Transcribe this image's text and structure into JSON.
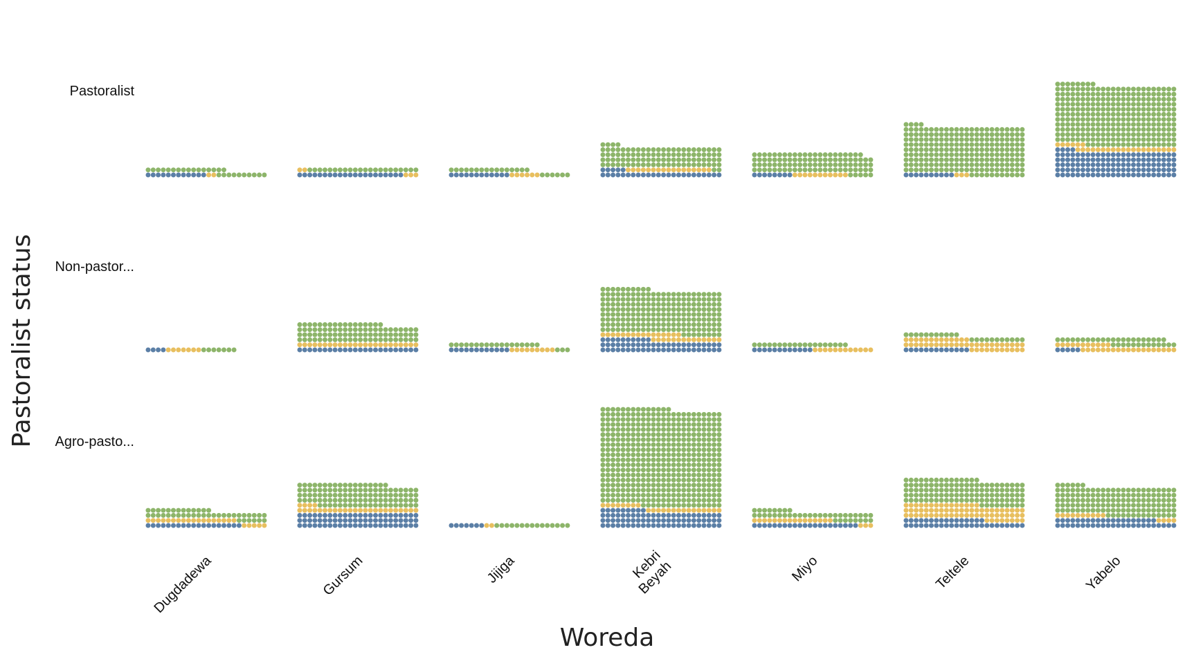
{
  "chart_data": {
    "type": "waffle",
    "xlabel": "Woreda",
    "ylabel": "Pastoralist status",
    "columns": [
      "Dugdadewa",
      "Gursum",
      "Jijiga",
      "Kebri Beyah",
      "Miyo",
      "Teltele",
      "Yabelo"
    ],
    "rows": [
      "Pastoralist",
      "Non-pastor...",
      "Agro-pasto..."
    ],
    "colors": {
      "blue": "#5b7fa6",
      "yellow": "#e8bf5f",
      "green": "#8db56a"
    },
    "dots_per_row": 24,
    "series_order": [
      "blue",
      "yellow",
      "green"
    ],
    "cells": [
      [
        {
          "blue": 12,
          "yellow": 2,
          "green": 26
        },
        {
          "blue": 21,
          "yellow": 5,
          "green": 22
        },
        {
          "blue": 12,
          "yellow": 6,
          "green": 22
        },
        {
          "blue": 29,
          "yellow": 17,
          "green": 102
        },
        {
          "blue": 8,
          "yellow": 11,
          "green": 99
        },
        {
          "blue": 10,
          "yellow": 3,
          "green": 231
        },
        {
          "blue": 124,
          "yellow": 26,
          "green": 290
        }
      ],
      [
        {
          "blue": 4,
          "yellow": 7,
          "green": 7
        },
        {
          "blue": 24,
          "yellow": 24,
          "green": 89
        },
        {
          "blue": 12,
          "yellow": 9,
          "green": 21
        },
        {
          "blue": 58,
          "yellow": 30,
          "green": 210
        },
        {
          "blue": 12,
          "yellow": 12,
          "green": 19
        },
        {
          "blue": 13,
          "yellow": 48,
          "green": 22
        },
        {
          "blue": 5,
          "yellow": 30,
          "green": 35
        }
      ],
      [
        {
          "blue": 19,
          "yellow": 23,
          "green": 43
        },
        {
          "blue": 72,
          "yellow": 28,
          "green": 110
        },
        {
          "blue": 7,
          "yellow": 2,
          "green": 15
        },
        {
          "blue": 81,
          "yellow": 23,
          "green": 462
        },
        {
          "blue": 21,
          "yellow": 19,
          "green": 40
        },
        {
          "blue": 40,
          "yellow": 71,
          "green": 120
        },
        {
          "blue": 44,
          "yellow": 14,
          "green": 140
        }
      ]
    ]
  }
}
